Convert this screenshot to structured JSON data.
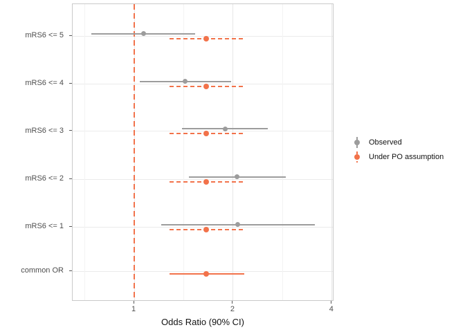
{
  "figure": {
    "background": "#ffffff"
  },
  "chart_data": {
    "type": "forest-pointrange",
    "title": "",
    "xlabel": "Odds Ratio (90% CI)",
    "ylabel": "",
    "x_scale": "log2",
    "x_range": [
      0.65,
      4.06
    ],
    "x_ticks": [
      {
        "value": 1,
        "label": "1"
      },
      {
        "value": 2,
        "label": "2"
      },
      {
        "value": 4,
        "label": "4"
      }
    ],
    "x_minor_gridlines": [
      0.7071,
      1.4142,
      2.8284
    ],
    "grid": "on",
    "reference_line": {
      "value": 1,
      "linetype": "dashed",
      "color": "#f2724a"
    },
    "categories": [
      "mRS6 <= 5",
      "mRS6 <= 4",
      "mRS6 <= 3",
      "mRS6 <= 2",
      "mRS6 <= 1",
      "common OR"
    ],
    "series": [
      {
        "name": "Observed",
        "color": "#9c9c9c",
        "points": [
          {
            "category": "mRS6 <= 5",
            "est": 1.07,
            "lo": 0.74,
            "hi": 1.53,
            "linetype": "solid"
          },
          {
            "category": "mRS6 <= 4",
            "est": 1.43,
            "lo": 1.04,
            "hi": 1.97,
            "linetype": "solid"
          },
          {
            "category": "mRS6 <= 3",
            "est": 1.89,
            "lo": 1.4,
            "hi": 2.55,
            "linetype": "solid"
          },
          {
            "category": "mRS6 <= 2",
            "est": 2.06,
            "lo": 1.47,
            "hi": 2.9,
            "linetype": "solid"
          },
          {
            "category": "mRS6 <= 1",
            "est": 2.07,
            "lo": 1.21,
            "hi": 3.55,
            "linetype": "solid"
          },
          {
            "category": "common OR",
            "est": null,
            "lo": null,
            "hi": null,
            "linetype": "solid"
          }
        ]
      },
      {
        "name": "Under PO assumption",
        "color": "#f2724a",
        "points": [
          {
            "category": "mRS6 <= 5",
            "est": 1.66,
            "lo": 1.28,
            "hi": 2.16,
            "linetype": "dashed"
          },
          {
            "category": "mRS6 <= 4",
            "est": 1.66,
            "lo": 1.28,
            "hi": 2.16,
            "linetype": "dashed"
          },
          {
            "category": "mRS6 <= 3",
            "est": 1.66,
            "lo": 1.28,
            "hi": 2.16,
            "linetype": "dashed"
          },
          {
            "category": "mRS6 <= 2",
            "est": 1.66,
            "lo": 1.28,
            "hi": 2.16,
            "linetype": "dashed"
          },
          {
            "category": "mRS6 <= 1",
            "est": 1.66,
            "lo": 1.28,
            "hi": 2.16,
            "linetype": "dashed"
          },
          {
            "category": "common OR",
            "est": 1.66,
            "lo": 1.28,
            "hi": 2.16,
            "linetype": "solid"
          }
        ]
      }
    ],
    "legend": {
      "position": "right",
      "items": [
        {
          "label": "Observed",
          "color": "#9c9c9c",
          "linetype": "solid"
        },
        {
          "label": "Under PO assumption",
          "color": "#f2724a",
          "linetype": "dashed"
        }
      ]
    }
  }
}
